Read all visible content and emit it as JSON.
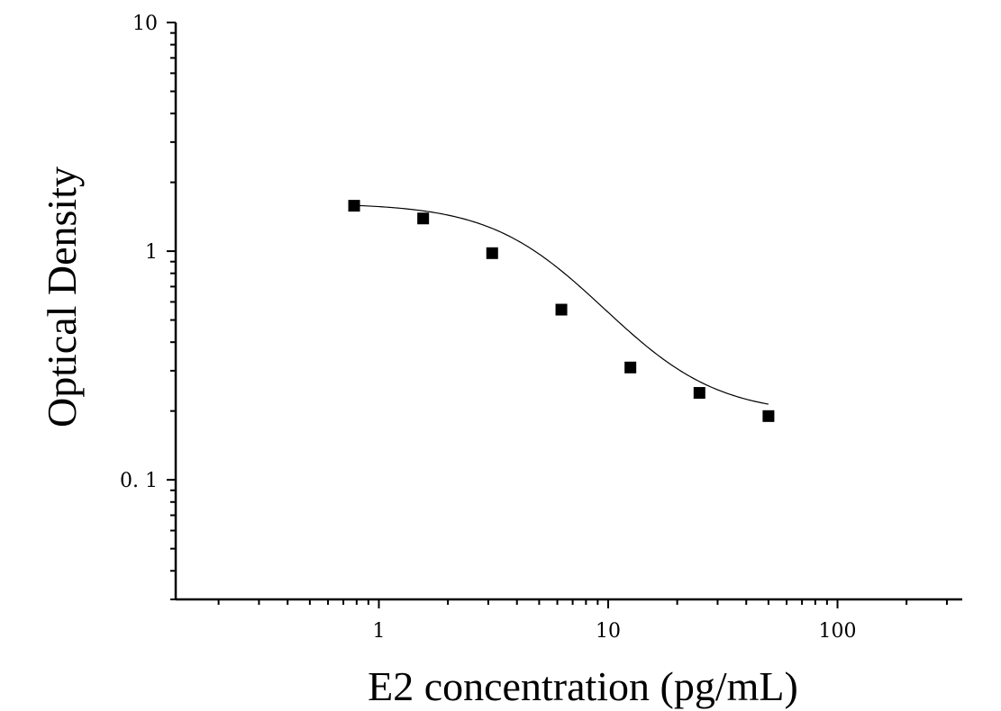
{
  "chart_data": {
    "type": "scatter",
    "title": "",
    "xlabel": "E2 concentration (pg/mL)",
    "ylabel": "Optical Density",
    "x_scale": "log",
    "y_scale": "log",
    "xlim": [
      0.13,
      350
    ],
    "ylim": [
      0.03,
      10
    ],
    "x_ticks": [
      {
        "value": 1,
        "label": "1"
      },
      {
        "value": 10,
        "label": "10"
      },
      {
        "value": 100,
        "label": "100"
      }
    ],
    "y_ticks": [
      {
        "value": 0.1,
        "label": "0. 1"
      },
      {
        "value": 1,
        "label": "1"
      },
      {
        "value": 10,
        "label": "10"
      }
    ],
    "grid": false,
    "legend": "none",
    "series": [
      {
        "marker": "square",
        "color": "#000000",
        "points": [
          {
            "x": 0.78,
            "y": 1.58
          },
          {
            "x": 1.56,
            "y": 1.39
          },
          {
            "x": 3.12,
            "y": 0.98
          },
          {
            "x": 6.25,
            "y": 0.555
          },
          {
            "x": 12.5,
            "y": 0.31
          },
          {
            "x": 25,
            "y": 0.24
          },
          {
            "x": 50,
            "y": 0.19
          }
        ]
      }
    ],
    "fit_curve": {
      "model": "4PL",
      "top": 1.62,
      "bottom": 0.193,
      "ec50": 5.5,
      "hill": 1.9,
      "x_range": [
        0.78,
        50
      ]
    }
  }
}
